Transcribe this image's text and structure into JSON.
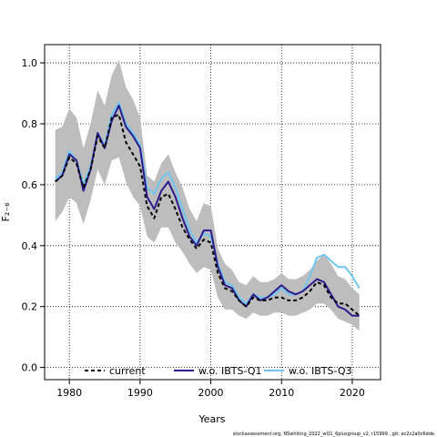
{
  "chart_data": {
    "type": "line",
    "title": "",
    "xlabel": "Years",
    "ylabel": "F₂₋₆",
    "xlim": [
      1976.5,
      2024
    ],
    "ylim": [
      -0.04,
      1.06
    ],
    "xticks": [
      1980,
      1990,
      2000,
      2010,
      2020
    ],
    "xtick_labels": [
      "1980",
      "1990",
      "2000",
      "2010",
      "2020"
    ],
    "yticks": [
      0.0,
      0.2,
      0.4,
      0.6,
      0.8,
      1.0
    ],
    "ytick_labels": [
      "0.0",
      "0.2",
      "0.4",
      "0.6",
      "0.8",
      "1.0"
    ],
    "grid": "dotted",
    "legend_position": "bottom",
    "x": [
      1978,
      1979,
      1980,
      1981,
      1982,
      1983,
      1984,
      1985,
      1986,
      1987,
      1988,
      1989,
      1990,
      1991,
      1992,
      1993,
      1994,
      1995,
      1996,
      1997,
      1998,
      1999,
      2000,
      2001,
      2002,
      2003,
      2004,
      2005,
      2006,
      2007,
      2008,
      2009,
      2010,
      2011,
      2012,
      2013,
      2014,
      2015,
      2016,
      2017,
      2018,
      2019,
      2020,
      2021
    ],
    "band": {
      "upper": [
        0.78,
        0.79,
        0.85,
        0.82,
        0.72,
        0.8,
        0.91,
        0.86,
        0.96,
        1.01,
        0.92,
        0.88,
        0.82,
        0.63,
        0.61,
        0.67,
        0.7,
        0.64,
        0.59,
        0.52,
        0.48,
        0.54,
        0.53,
        0.39,
        0.34,
        0.32,
        0.28,
        0.27,
        0.3,
        0.28,
        0.28,
        0.29,
        0.31,
        0.29,
        0.29,
        0.3,
        0.32,
        0.35,
        0.37,
        0.34,
        0.3,
        0.29,
        0.26,
        0.24
      ],
      "lower": [
        0.48,
        0.51,
        0.56,
        0.54,
        0.47,
        0.55,
        0.65,
        0.6,
        0.68,
        0.69,
        0.61,
        0.56,
        0.53,
        0.43,
        0.41,
        0.46,
        0.46,
        0.41,
        0.38,
        0.34,
        0.31,
        0.33,
        0.32,
        0.23,
        0.19,
        0.19,
        0.17,
        0.16,
        0.18,
        0.17,
        0.17,
        0.18,
        0.18,
        0.17,
        0.17,
        0.18,
        0.19,
        0.21,
        0.21,
        0.19,
        0.16,
        0.15,
        0.14,
        0.12
      ]
    },
    "series": [
      {
        "name": "current",
        "color": "#000000",
        "dash": "4,3",
        "values": [
          0.61,
          0.63,
          0.69,
          0.67,
          0.59,
          0.65,
          0.76,
          0.72,
          0.82,
          0.83,
          0.74,
          0.7,
          0.66,
          0.53,
          0.49,
          0.56,
          0.57,
          0.52,
          0.46,
          0.42,
          0.39,
          0.42,
          0.41,
          0.31,
          0.26,
          0.25,
          0.22,
          0.2,
          0.23,
          0.22,
          0.22,
          0.23,
          0.23,
          0.22,
          0.22,
          0.23,
          0.25,
          0.28,
          0.27,
          0.23,
          0.21,
          0.21,
          0.19,
          0.17
        ]
      },
      {
        "name": "w.o. IBTS-Q1",
        "color": "#2b1b8f",
        "dash": "",
        "values": [
          0.61,
          0.63,
          0.7,
          0.68,
          0.58,
          0.65,
          0.77,
          0.72,
          0.81,
          0.86,
          0.79,
          0.76,
          0.72,
          0.56,
          0.52,
          0.58,
          0.61,
          0.56,
          0.49,
          0.43,
          0.4,
          0.45,
          0.45,
          0.33,
          0.27,
          0.26,
          0.22,
          0.2,
          0.24,
          0.22,
          0.23,
          0.25,
          0.27,
          0.25,
          0.24,
          0.25,
          0.27,
          0.29,
          0.28,
          0.24,
          0.2,
          0.19,
          0.17,
          0.17
        ]
      },
      {
        "name": "w.o. IBTS-Q3",
        "color": "#6ec6f0",
        "dash": "",
        "values": [
          0.62,
          0.64,
          0.71,
          0.68,
          0.6,
          0.66,
          0.77,
          0.73,
          0.83,
          0.87,
          0.8,
          0.77,
          0.73,
          0.59,
          0.57,
          0.62,
          0.64,
          0.59,
          0.52,
          0.45,
          0.41,
          0.44,
          0.43,
          0.34,
          0.28,
          0.27,
          0.23,
          0.21,
          0.24,
          0.23,
          0.23,
          0.24,
          0.26,
          0.24,
          0.24,
          0.25,
          0.3,
          0.36,
          0.37,
          0.35,
          0.33,
          0.33,
          0.3,
          0.26
        ]
      }
    ]
  },
  "footnote": "stockassessment.org, NSwhiting_2022_wQ1_6plusgroup_v2,  r15999 ,  git: ec2c2a0c6dde",
  "colors": {
    "band": "#bdbdbd",
    "grid": "#000000"
  }
}
